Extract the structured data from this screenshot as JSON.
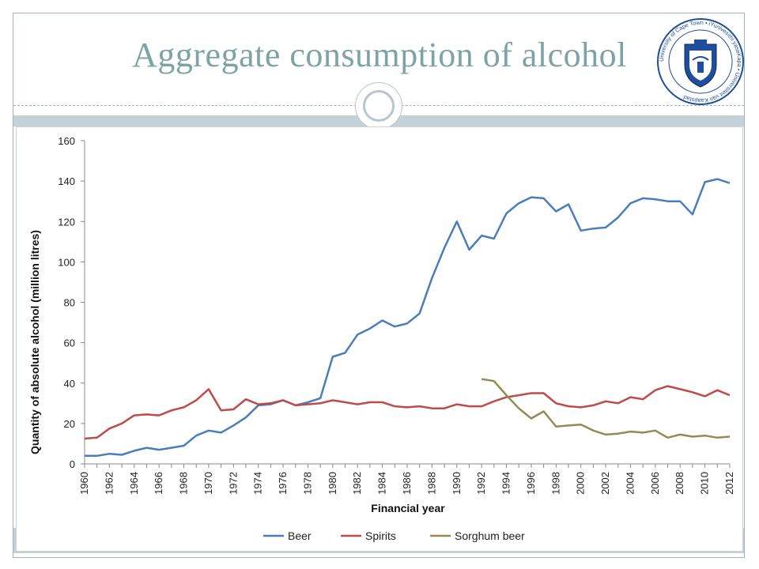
{
  "slide": {
    "title": "Aggregate consumption of alcohol",
    "logo_text": "University of Cape Town • iYunivesithi yaseKapa • Universiteit van Kaapstad"
  },
  "chart_data": {
    "type": "line",
    "title": "",
    "xlabel": "Financial year",
    "ylabel": "Quantity of absolute alcohol (million litres)",
    "ylim": [
      0,
      160
    ],
    "yticks": [
      0,
      20,
      40,
      60,
      80,
      100,
      120,
      140,
      160
    ],
    "x": [
      1960,
      1961,
      1962,
      1963,
      1964,
      1965,
      1966,
      1967,
      1968,
      1969,
      1970,
      1971,
      1972,
      1973,
      1974,
      1975,
      1976,
      1977,
      1978,
      1979,
      1980,
      1981,
      1982,
      1983,
      1984,
      1985,
      1986,
      1987,
      1988,
      1989,
      1990,
      1991,
      1992,
      1993,
      1994,
      1995,
      1996,
      1997,
      1998,
      1999,
      2000,
      2001,
      2002,
      2003,
      2004,
      2005,
      2006,
      2007,
      2008,
      2009,
      2010,
      2011,
      2012
    ],
    "xtick_labels": [
      "1960",
      "1962",
      "1964",
      "1966",
      "1968",
      "1970",
      "1972",
      "1974",
      "1976",
      "1978",
      "1980",
      "1982",
      "1984",
      "1986",
      "1988",
      "1990",
      "1992",
      "1994",
      "1996",
      "1998",
      "2000",
      "2002",
      "2004",
      "2006",
      "2008",
      "2010",
      "2012"
    ],
    "grid": false,
    "legend_position": "bottom",
    "series": [
      {
        "name": "Beer",
        "color": "#4a7ebb",
        "values": [
          4,
          4,
          5,
          4.5,
          6.5,
          8,
          7,
          8,
          9,
          14,
          16.5,
          15.5,
          19,
          23,
          29,
          29.5,
          31.5,
          29,
          30.5,
          32.5,
          53,
          55,
          64,
          67,
          71,
          68,
          69.5,
          74.5,
          92,
          107,
          120,
          106,
          113,
          111.5,
          124,
          129,
          132,
          131.5,
          125,
          128.5,
          115.5,
          116.5,
          117,
          122,
          129,
          131.5,
          131,
          130,
          130,
          123.5,
          139.5,
          141,
          139
        ]
      },
      {
        "name": "Spirits",
        "color": "#be4b48",
        "values": [
          12.5,
          13,
          17.5,
          20,
          24,
          24.5,
          24,
          26.5,
          28,
          31.5,
          37,
          26.5,
          27,
          32,
          29.5,
          30,
          31.5,
          29,
          29.5,
          30,
          31.5,
          30.5,
          29.5,
          30.5,
          30.5,
          28.5,
          28,
          28.5,
          27.5,
          27.5,
          29.5,
          28.5,
          28.5,
          31,
          33,
          34,
          35,
          35,
          30,
          28.5,
          28,
          29,
          31,
          30,
          33,
          32,
          36.5,
          38.5,
          37,
          35.5,
          33.5,
          36.5,
          34
        ]
      },
      {
        "name": "Sorghum beer",
        "color": "#948a54",
        "values": [
          null,
          null,
          null,
          null,
          null,
          null,
          null,
          null,
          null,
          null,
          null,
          null,
          null,
          null,
          null,
          null,
          null,
          null,
          null,
          null,
          null,
          null,
          null,
          null,
          null,
          null,
          null,
          null,
          null,
          null,
          null,
          null,
          42,
          41,
          34,
          27.5,
          22.5,
          26,
          18.5,
          19,
          19.5,
          16.5,
          14.5,
          15,
          16,
          15.5,
          16.5,
          13,
          14.5,
          13.5,
          14,
          13,
          13.5
        ]
      }
    ]
  }
}
